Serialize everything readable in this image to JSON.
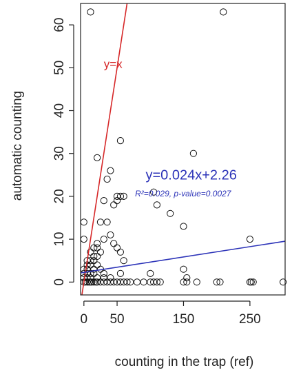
{
  "chart_data": {
    "type": "scatter",
    "xlabel": "counting in the trap (ref)",
    "ylabel": "automatic counting",
    "xlim": [
      -5,
      303
    ],
    "ylim": [
      -3,
      65
    ],
    "xticks": [
      "0",
      "50",
      "150",
      "250"
    ],
    "xtick_values": [
      0,
      50,
      150,
      250
    ],
    "yticks": [
      "0",
      "10",
      "20",
      "30",
      "40",
      "50",
      "60"
    ],
    "ytick_values": [
      0,
      10,
      20,
      30,
      40,
      50,
      60
    ],
    "grid": false,
    "points": [
      [
        10,
        63
      ],
      [
        210,
        63
      ],
      [
        55,
        33
      ],
      [
        165,
        30
      ],
      [
        20,
        29
      ],
      [
        40,
        26
      ],
      [
        35,
        24
      ],
      [
        105,
        21
      ],
      [
        50,
        20
      ],
      [
        55,
        20
      ],
      [
        60,
        20
      ],
      [
        30,
        19
      ],
      [
        50,
        19
      ],
      [
        45,
        18
      ],
      [
        110,
        18
      ],
      [
        130,
        16
      ],
      [
        0,
        14
      ],
      [
        25,
        14
      ],
      [
        35,
        14
      ],
      [
        150,
        13
      ],
      [
        40,
        11
      ],
      [
        0,
        10
      ],
      [
        30,
        10
      ],
      [
        250,
        10
      ],
      [
        45,
        9
      ],
      [
        50,
        8
      ],
      [
        55,
        7
      ],
      [
        60,
        5
      ],
      [
        20,
        9
      ],
      [
        15,
        8
      ],
      [
        20,
        8
      ],
      [
        10,
        7
      ],
      [
        25,
        7
      ],
      [
        15,
        6
      ],
      [
        20,
        6
      ],
      [
        5,
        5
      ],
      [
        10,
        5
      ],
      [
        15,
        5
      ],
      [
        5,
        4
      ],
      [
        10,
        4
      ],
      [
        20,
        4
      ],
      [
        0,
        3
      ],
      [
        5,
        3
      ],
      [
        15,
        3
      ],
      [
        25,
        3
      ],
      [
        0,
        2
      ],
      [
        5,
        2
      ],
      [
        10,
        2
      ],
      [
        15,
        2
      ],
      [
        30,
        2
      ],
      [
        55,
        2
      ],
      [
        100,
        2
      ],
      [
        0,
        1
      ],
      [
        5,
        1
      ],
      [
        10,
        1
      ],
      [
        20,
        1
      ],
      [
        30,
        1
      ],
      [
        40,
        1
      ],
      [
        150,
        3
      ],
      [
        155,
        1
      ],
      [
        0,
        0
      ],
      [
        2,
        0
      ],
      [
        5,
        0
      ],
      [
        8,
        0
      ],
      [
        10,
        0
      ],
      [
        12,
        0
      ],
      [
        15,
        0
      ],
      [
        18,
        0
      ],
      [
        20,
        0
      ],
      [
        25,
        0
      ],
      [
        30,
        0
      ],
      [
        35,
        0
      ],
      [
        40,
        0
      ],
      [
        45,
        0
      ],
      [
        50,
        0
      ],
      [
        55,
        0
      ],
      [
        60,
        0
      ],
      [
        65,
        0
      ],
      [
        70,
        0
      ],
      [
        80,
        0
      ],
      [
        90,
        0
      ],
      [
        100,
        0
      ],
      [
        105,
        0
      ],
      [
        110,
        0
      ],
      [
        115,
        0
      ],
      [
        150,
        0
      ],
      [
        155,
        0
      ],
      [
        170,
        0
      ],
      [
        200,
        0
      ],
      [
        205,
        0
      ],
      [
        250,
        0
      ],
      [
        252,
        0
      ],
      [
        255,
        0
      ],
      [
        300,
        0
      ]
    ],
    "lines": [
      {
        "label": "y=x",
        "intercept": 0,
        "slope": 1,
        "color": "#d62728"
      },
      {
        "label": "y=0.024x+2.26",
        "intercept": 2.26,
        "slope": 0.024,
        "color": "#2c33b8"
      }
    ],
    "annotations": {
      "identity_label": "y=x",
      "regression_label": "y=0.024x+2.26",
      "stats_label": "R²=0.029, p-value=0.0027"
    },
    "colors": {
      "identity_line": "#d62728",
      "regression_line": "#2c33b8",
      "points": "#111111",
      "axes": "#222222"
    }
  }
}
